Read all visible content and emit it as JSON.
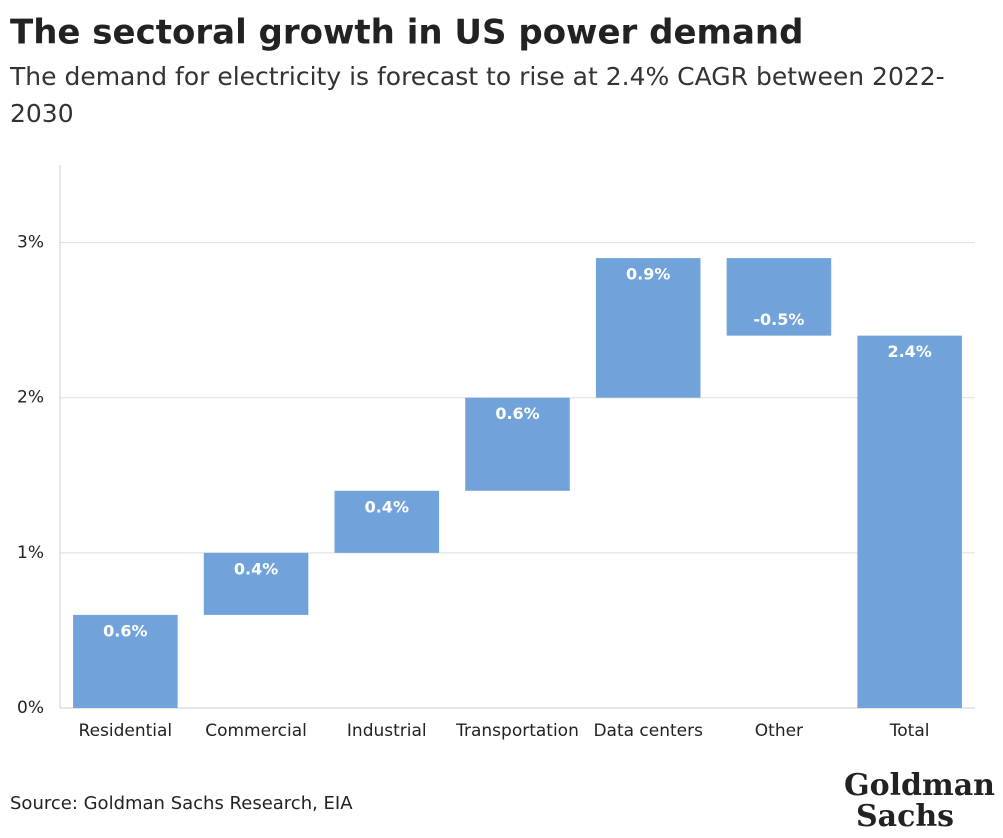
{
  "chart_data": {
    "type": "waterfall",
    "title": "The sectoral growth in US power demand",
    "subtitle": "The demand for electricity is forecast to rise at 2.4% CAGR between 2022-2030",
    "categories": [
      "Residential",
      "Commercial",
      "Industrial",
      "Transportation",
      "Data centers",
      "Other",
      "Total"
    ],
    "values": [
      0.6,
      0.4,
      0.4,
      0.6,
      0.9,
      -0.5,
      2.4
    ],
    "value_labels": [
      "0.6%",
      "0.4%",
      "0.4%",
      "0.6%",
      "0.9%",
      "-0.5%",
      "2.4%"
    ],
    "is_total": [
      false,
      false,
      false,
      false,
      false,
      false,
      true
    ],
    "color": "#71a3da",
    "ylim": [
      0,
      3.5
    ],
    "yticks": [
      {
        "value": 0,
        "label": "0%"
      },
      {
        "value": 1,
        "label": "1%"
      },
      {
        "value": 2,
        "label": "2%"
      },
      {
        "value": 3,
        "label": "3%"
      }
    ],
    "grid": true,
    "source": "Source: Goldman Sachs Research, EIA",
    "logo": [
      "Goldman",
      "Sachs"
    ]
  }
}
